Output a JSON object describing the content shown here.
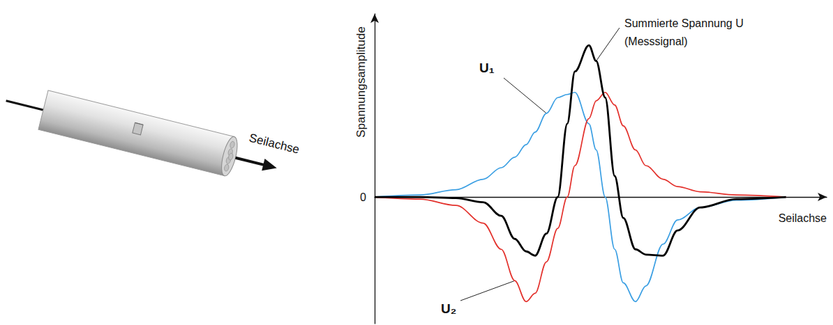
{
  "chart_data": {
    "type": "line",
    "x_label": "Seilachse",
    "y_label": "Spannungsamplitude",
    "x": [
      0,
      10,
      18,
      24,
      28,
      31,
      33.5,
      35.5,
      38,
      40.5,
      42.6,
      44.3,
      47.4,
      49,
      51,
      53.1,
      55,
      57.7,
      60,
      63.8,
      67,
      72,
      80,
      91
    ],
    "series": [
      {
        "name": "U₁",
        "color": "#3b9fe3",
        "values": [
          0,
          0.02,
          0.07,
          0.17,
          0.28,
          0.38,
          0.5,
          0.62,
          0.8,
          0.95,
          0.98,
          1.0,
          0.7,
          0.45,
          0,
          -0.5,
          -0.82,
          -1.0,
          -0.85,
          -0.45,
          -0.22,
          -0.1,
          -0.03,
          0
        ]
      },
      {
        "name": "U₂",
        "color": "#e3302b",
        "values": [
          0,
          -0.02,
          -0.08,
          -0.25,
          -0.5,
          -0.8,
          -1.0,
          -0.92,
          -0.62,
          -0.3,
          0,
          0.3,
          0.75,
          0.92,
          1.0,
          0.88,
          0.68,
          0.45,
          0.3,
          0.17,
          0.1,
          0.05,
          0.02,
          0
        ]
      },
      {
        "name": "Summierte Spannung U (Messsignal)",
        "color": "#000000",
        "values": [
          0,
          0,
          -0.01,
          -0.05,
          -0.18,
          -0.4,
          -0.52,
          -0.56,
          -0.35,
          0,
          0.7,
          1.2,
          1.45,
          1.3,
          0.95,
          0.2,
          -0.2,
          -0.5,
          -0.55,
          -0.56,
          -0.32,
          -0.1,
          -0.02,
          0
        ]
      }
    ],
    "xlim": [
      0,
      100
    ],
    "ylim": [
      -1.21,
      1.75
    ],
    "yticks": [
      0
    ],
    "tick_labels": "y",
    "grid": false
  },
  "figure": {
    "rope": {
      "axis_label": "Seilachse"
    }
  }
}
